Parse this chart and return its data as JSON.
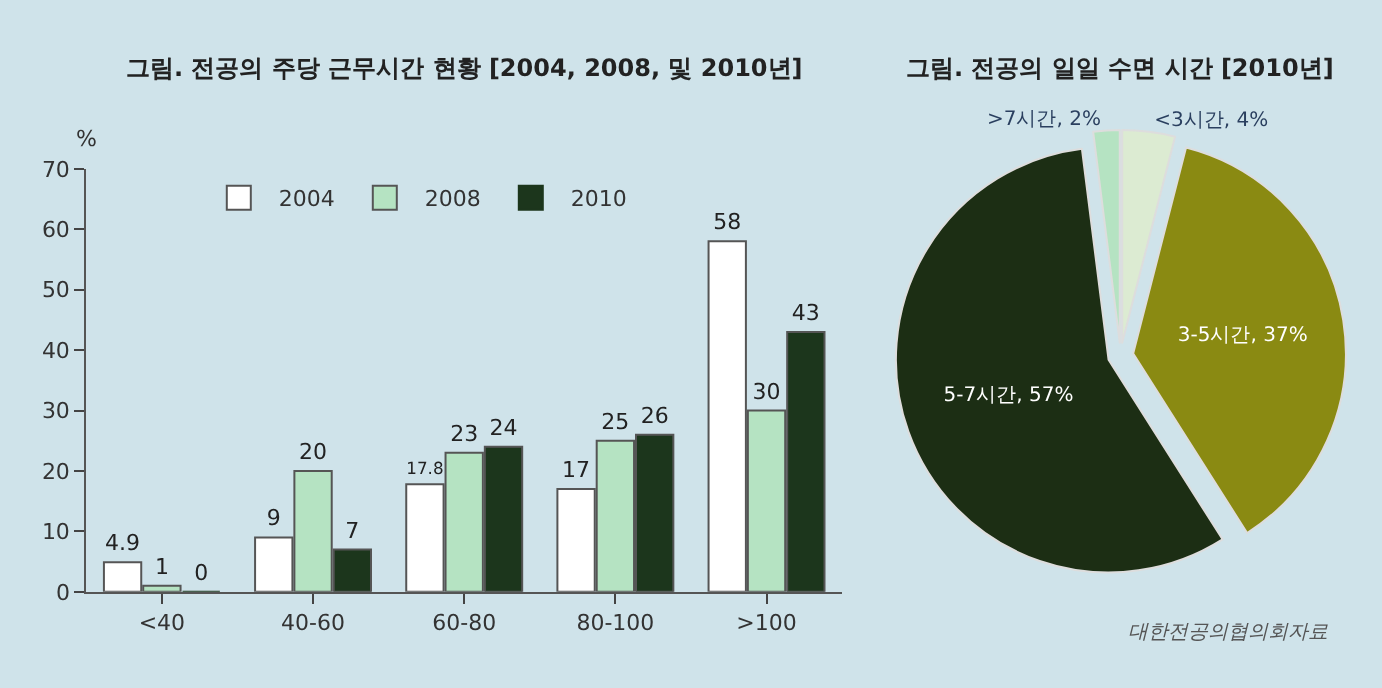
{
  "chart_data": [
    {
      "type": "bar",
      "title": "그림. 전공의 주당 근무시간 현황 [2004, 2008, 및 2010년]",
      "ylabel": "%",
      "categories": [
        "<40",
        "40-60",
        "60-80",
        "80-100",
        ">100"
      ],
      "series": [
        {
          "name": "2004",
          "color": "#ffffff",
          "values": [
            4.9,
            9,
            17.8,
            17,
            58
          ]
        },
        {
          "name": "2008",
          "color": "#b5e3c2",
          "values": [
            1,
            20,
            23,
            25,
            30
          ]
        },
        {
          "name": "2010",
          "color": "#1c361c",
          "values": [
            0,
            7,
            24,
            26,
            43
          ]
        }
      ],
      "ylim": [
        0,
        70
      ],
      "yticks": [
        0,
        10,
        20,
        30,
        40,
        50,
        60,
        70
      ],
      "grid": false,
      "legend": "top",
      "data_labels": true
    },
    {
      "type": "pie",
      "title": "그림. 전공의 일일 수면 시간 [2010년]",
      "categories": [
        "<3시간, 4%",
        "3-5시간, 37%",
        "5-7시간, 57%",
        ">7시간, 2%"
      ],
      "values": [
        4,
        37,
        57,
        2
      ],
      "colors": [
        "#dcebd2",
        "#8a8a12",
        "#1c2e14",
        "#b5e3c2"
      ],
      "annotations": [
        "대한전공의협의회자료"
      ]
    }
  ]
}
